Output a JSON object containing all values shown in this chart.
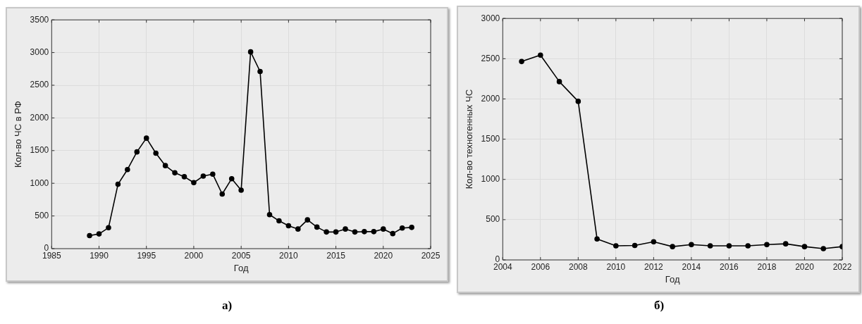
{
  "chart_data": [
    {
      "type": "line",
      "xlabel": "Год",
      "ylabel": "Кол-во ЧС в РФ",
      "annotations": [
        "а)"
      ],
      "x": [
        1989,
        1990,
        1991,
        1992,
        1993,
        1994,
        1995,
        1996,
        1997,
        1998,
        1999,
        2000,
        2001,
        2002,
        2003,
        2004,
        2005,
        2006,
        2007,
        2008,
        2009,
        2010,
        2011,
        2012,
        2013,
        2014,
        2015,
        2016,
        2017,
        2018,
        2019,
        2020,
        2021,
        2022,
        2023
      ],
      "series": [
        {
          "color": "#000000",
          "values": [
            200,
            225,
            320,
            985,
            1210,
            1480,
            1690,
            1460,
            1270,
            1160,
            1100,
            1010,
            1110,
            1140,
            835,
            1070,
            895,
            3010,
            2710,
            520,
            425,
            350,
            300,
            440,
            330,
            255,
            255,
            300,
            255,
            260,
            260,
            300,
            230,
            315,
            325
          ]
        }
      ],
      "xlim": [
        1985,
        2025
      ],
      "xticks": [
        1985,
        1990,
        1995,
        2000,
        2005,
        2010,
        2015,
        2020,
        2025
      ],
      "ylim": [
        0,
        3500
      ],
      "yticks": [
        0,
        500,
        1000,
        1500,
        2000,
        2500,
        3000,
        3500
      ],
      "grid": true,
      "marker": "circle",
      "line_style": "solid",
      "legend": false
    },
    {
      "type": "line",
      "xlabel": "Год",
      "ylabel": "Кол-во техногенных ЧС",
      "annotations": [
        "б)"
      ],
      "x": [
        2005,
        2006,
        2007,
        2008,
        2009,
        2010,
        2011,
        2012,
        2013,
        2014,
        2015,
        2016,
        2017,
        2018,
        2019,
        2020,
        2021,
        2022
      ],
      "series": [
        {
          "color": "#000000",
          "values": [
            2465,
            2545,
            2215,
            1970,
            260,
            175,
            180,
            225,
            165,
            190,
            175,
            175,
            175,
            190,
            200,
            165,
            140,
            165
          ]
        }
      ],
      "xlim": [
        2004,
        2022
      ],
      "xticks": [
        2004,
        2006,
        2008,
        2010,
        2012,
        2014,
        2016,
        2018,
        2020,
        2022
      ],
      "ylim": [
        0,
        3000
      ],
      "yticks": [
        0,
        500,
        1000,
        1500,
        2000,
        2500,
        3000
      ],
      "grid": true,
      "marker": "circle",
      "line_style": "solid",
      "legend": false
    }
  ]
}
